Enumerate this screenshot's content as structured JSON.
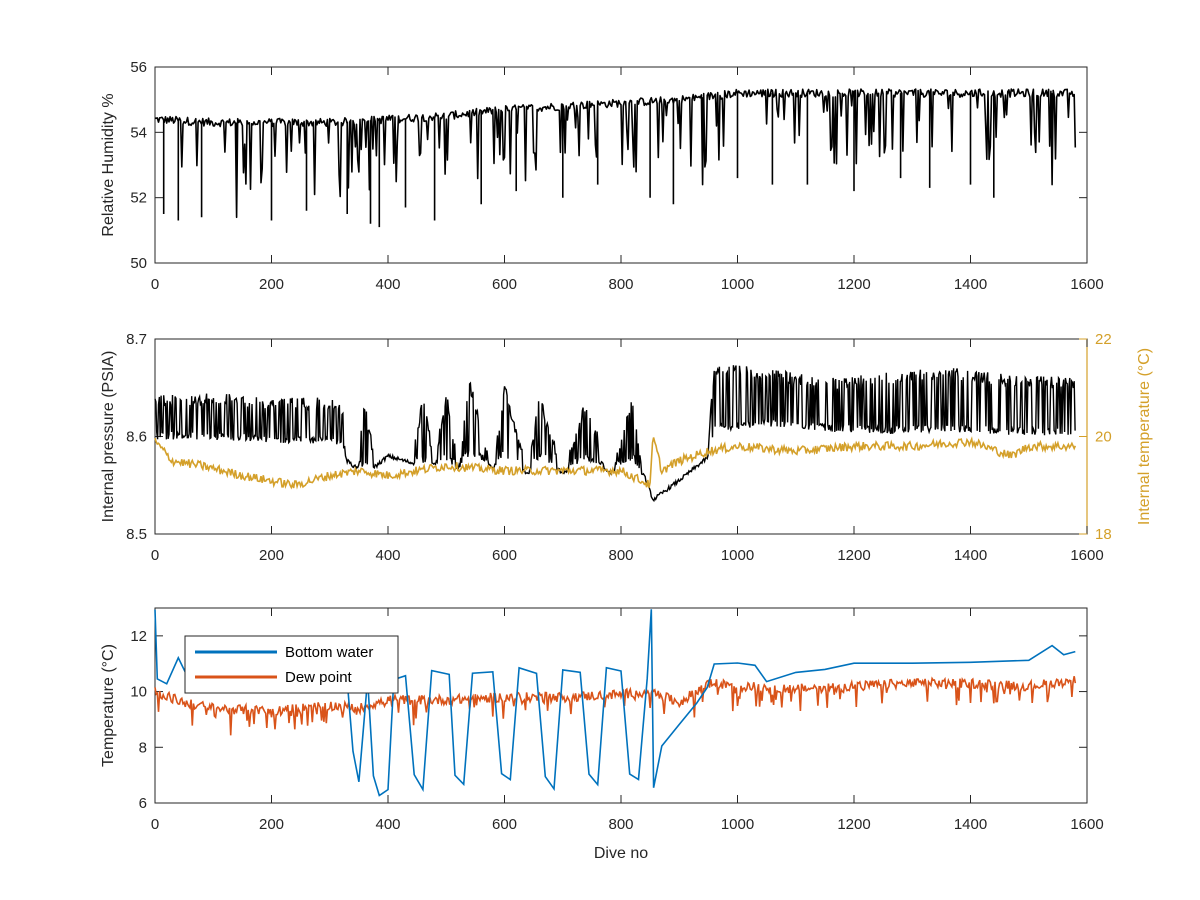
{
  "chart_data": [
    {
      "type": "line",
      "title": "",
      "xlabel": "",
      "ylabel": "Relative Humidity %",
      "xlim": [
        0,
        1600
      ],
      "ylim": [
        50,
        56
      ],
      "xticks": [
        "0",
        "200",
        "400",
        "600",
        "800",
        "1000",
        "1200",
        "1400",
        "1600"
      ],
      "yticks": [
        "50",
        "52",
        "54",
        "56"
      ],
      "grid": false,
      "series": [
        {
          "color": "#000000",
          "style": "baseline with frequent downward spikes",
          "baseline": [
            [
              0,
              54.4
            ],
            [
              100,
              54.3
            ],
            [
              200,
              54.3
            ],
            [
              300,
              54.3
            ],
            [
              400,
              54.4
            ],
            [
              500,
              54.5
            ],
            [
              600,
              54.7
            ],
            [
              700,
              54.8
            ],
            [
              800,
              54.9
            ],
            [
              900,
              55.0
            ],
            [
              950,
              55.1
            ],
            [
              1000,
              55.2
            ],
            [
              1100,
              55.2
            ],
            [
              1200,
              55.2
            ],
            [
              1300,
              55.2
            ],
            [
              1400,
              55.2
            ],
            [
              1500,
              55.2
            ],
            [
              1580,
              55.2
            ]
          ],
          "spike_minima": [
            [
              15,
              51.5
            ],
            [
              40,
              51.3
            ],
            [
              80,
              51.4
            ],
            [
              140,
              51.4
            ],
            [
              200,
              51.3
            ],
            [
              260,
              51.6
            ],
            [
              330,
              51.5
            ],
            [
              370,
              51.2
            ],
            [
              385,
              51.1
            ],
            [
              430,
              51.7
            ],
            [
              480,
              51.3
            ],
            [
              560,
              51.8
            ],
            [
              620,
              52.2
            ],
            [
              700,
              52.0
            ],
            [
              760,
              52.4
            ],
            [
              850,
              52.0
            ],
            [
              890,
              51.8
            ],
            [
              940,
              52.4
            ],
            [
              1000,
              52.6
            ],
            [
              1060,
              52.4
            ],
            [
              1120,
              52.4
            ],
            [
              1200,
              52.2
            ],
            [
              1280,
              52.6
            ],
            [
              1330,
              52.3
            ],
            [
              1400,
              52.4
            ],
            [
              1440,
              52.0
            ],
            [
              1540,
              52.4
            ]
          ]
        }
      ]
    },
    {
      "type": "line",
      "title": "",
      "xlabel": "",
      "ylabel": "Internal pressure (PSIA)",
      "ylabel_right": "Internal temperature (°C)",
      "xlim": [
        0,
        1600
      ],
      "ylim": [
        8.5,
        8.7
      ],
      "ylim_right": [
        18,
        22
      ],
      "xticks": [
        "0",
        "200",
        "400",
        "600",
        "800",
        "1000",
        "1200",
        "1400",
        "1600"
      ],
      "yticks": [
        "8.5",
        "8.6",
        "8.7"
      ],
      "yticks_right": [
        "18",
        "20",
        "22"
      ],
      "grid": false,
      "series": [
        {
          "axis": "left",
          "color": "#000000",
          "style": "oscillating band",
          "band": [
            [
              0,
              8.597,
              8.642
            ],
            [
              100,
              8.596,
              8.645
            ],
            [
              200,
              8.593,
              8.64
            ],
            [
              320,
              8.592,
              8.64
            ],
            [
              330,
              8.575,
              8.575
            ],
            [
              345,
              8.568,
              8.571
            ],
            [
              360,
              8.567,
              8.636
            ],
            [
              380,
              8.57,
              8.573
            ],
            [
              400,
              8.58,
              8.588
            ],
            [
              440,
              8.573,
              8.575
            ],
            [
              460,
              8.573,
              8.642
            ],
            [
              480,
              8.573,
              8.578
            ],
            [
              500,
              8.573,
              8.648
            ],
            [
              520,
              8.568,
              8.572
            ],
            [
              540,
              8.58,
              8.66
            ],
            [
              580,
              8.568,
              8.572
            ],
            [
              600,
              8.578,
              8.655
            ],
            [
              640,
              8.562,
              8.566
            ],
            [
              660,
              8.578,
              8.645
            ],
            [
              700,
              8.563,
              8.567
            ],
            [
              740,
              8.575,
              8.64
            ],
            [
              780,
              8.563,
              8.567
            ],
            [
              820,
              8.575,
              8.64
            ],
            [
              840,
              8.56,
              8.562
            ],
            [
              855,
              8.535,
              8.538
            ],
            [
              900,
              8.555,
              8.56
            ],
            [
              948,
              8.578,
              8.582
            ],
            [
              960,
              8.605,
              8.675
            ],
            [
              1050,
              8.61,
              8.67
            ],
            [
              1150,
              8.605,
              8.66
            ],
            [
              1250,
              8.602,
              8.665
            ],
            [
              1350,
              8.605,
              8.672
            ],
            [
              1450,
              8.602,
              8.665
            ],
            [
              1580,
              8.6,
              8.66
            ]
          ]
        },
        {
          "axis": "right",
          "color": "#D4A02A",
          "style": "line",
          "points": [
            [
              0,
              19.9
            ],
            [
              30,
              19.5
            ],
            [
              80,
              19.4
            ],
            [
              150,
              19.2
            ],
            [
              240,
              19.0
            ],
            [
              300,
              19.2
            ],
            [
              350,
              19.3
            ],
            [
              400,
              19.2
            ],
            [
              450,
              19.3
            ],
            [
              500,
              19.4
            ],
            [
              600,
              19.3
            ],
            [
              700,
              19.3
            ],
            [
              800,
              19.3
            ],
            [
              850,
              19.0
            ],
            [
              855,
              20.0
            ],
            [
              870,
              19.3
            ],
            [
              900,
              19.5
            ],
            [
              950,
              19.7
            ],
            [
              1000,
              19.8
            ],
            [
              1100,
              19.7
            ],
            [
              1200,
              19.8
            ],
            [
              1300,
              19.8
            ],
            [
              1400,
              19.9
            ],
            [
              1470,
              19.6
            ],
            [
              1500,
              19.8
            ],
            [
              1580,
              19.8
            ]
          ]
        }
      ]
    },
    {
      "type": "line",
      "title": "",
      "xlabel": "Dive no",
      "ylabel": "Temperature (°C)",
      "xlim": [
        0,
        1600
      ],
      "ylim": [
        6,
        13
      ],
      "xticks": [
        "0",
        "200",
        "400",
        "600",
        "800",
        "1000",
        "1200",
        "1400",
        "1600"
      ],
      "yticks": [
        "6",
        "8",
        "10",
        "12"
      ],
      "grid": false,
      "legend": {
        "placement": "top-left",
        "entries": [
          "Bottom water",
          "Dew point"
        ]
      },
      "series": [
        {
          "name": "Bottom water",
          "color": "#0072BD",
          "points": [
            [
              0,
              13.0
            ],
            [
              4,
              10.5
            ],
            [
              20,
              10.3
            ],
            [
              40,
              11.2
            ],
            [
              60,
              10.4
            ],
            [
              100,
              10.4
            ],
            [
              200,
              10.4
            ],
            [
              300,
              10.4
            ],
            [
              330,
              10.4
            ],
            [
              340,
              7.8
            ],
            [
              350,
              6.8
            ],
            [
              365,
              10.4
            ],
            [
              375,
              7.0
            ],
            [
              385,
              6.3
            ],
            [
              400,
              6.5
            ],
            [
              410,
              10.4
            ],
            [
              430,
              10.6
            ],
            [
              445,
              7.0
            ],
            [
              460,
              6.5
            ],
            [
              475,
              10.7
            ],
            [
              505,
              10.6
            ],
            [
              515,
              7.0
            ],
            [
              530,
              6.7
            ],
            [
              545,
              10.6
            ],
            [
              580,
              10.7
            ],
            [
              595,
              7.0
            ],
            [
              610,
              6.8
            ],
            [
              625,
              10.8
            ],
            [
              655,
              10.7
            ],
            [
              670,
              7.0
            ],
            [
              685,
              6.5
            ],
            [
              700,
              10.8
            ],
            [
              730,
              10.7
            ],
            [
              745,
              7.0
            ],
            [
              760,
              6.7
            ],
            [
              775,
              10.8
            ],
            [
              800,
              10.7
            ],
            [
              815,
              7.0
            ],
            [
              830,
              6.8
            ],
            [
              845,
              10.5
            ],
            [
              852,
              13.0
            ],
            [
              856,
              6.5
            ],
            [
              870,
              8.0
            ],
            [
              900,
              8.8
            ],
            [
              930,
              9.6
            ],
            [
              948,
              10.2
            ],
            [
              960,
              11.0
            ],
            [
              1000,
              11.0
            ],
            [
              1030,
              10.9
            ],
            [
              1050,
              10.3
            ],
            [
              1100,
              10.7
            ],
            [
              1150,
              10.8
            ],
            [
              1200,
              11.0
            ],
            [
              1300,
              11.0
            ],
            [
              1400,
              11.0
            ],
            [
              1500,
              11.1
            ],
            [
              1540,
              11.6
            ],
            [
              1560,
              11.3
            ],
            [
              1580,
              11.4
            ]
          ]
        },
        {
          "name": "Dew point",
          "color": "#D95319",
          "points": [
            [
              0,
              10.0
            ],
            [
              50,
              9.6
            ],
            [
              100,
              9.4
            ],
            [
              200,
              9.3
            ],
            [
              300,
              9.5
            ],
            [
              350,
              9.4
            ],
            [
              400,
              9.7
            ],
            [
              500,
              9.7
            ],
            [
              600,
              9.8
            ],
            [
              700,
              9.8
            ],
            [
              800,
              9.9
            ],
            [
              850,
              10.0
            ],
            [
              900,
              9.6
            ],
            [
              950,
              10.3
            ],
            [
              1000,
              10.2
            ],
            [
              1100,
              10.1
            ],
            [
              1200,
              10.2
            ],
            [
              1300,
              10.3
            ],
            [
              1400,
              10.3
            ],
            [
              1500,
              10.2
            ],
            [
              1580,
              10.4
            ]
          ]
        }
      ]
    }
  ]
}
